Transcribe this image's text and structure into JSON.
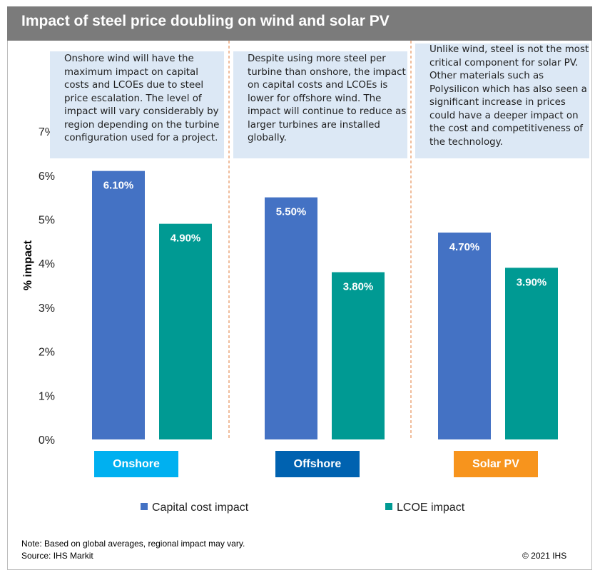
{
  "header": {
    "title": "Impact of steel price doubling on wind and solar PV"
  },
  "annotations": [
    "Onshore wind will have the maximum impact on capital costs and LCOEs due to steel price escalation. The level of impact will vary considerably by region depending on the turbine configuration used for a project.",
    "Despite using more steel per turbine than onshore, the impact on capital costs and LCOEs is lower for offshore wind. The impact will continue to reduce as larger turbines are installed globally.",
    "Unlike wind, steel is not the most critical component for solar PV. Other materials such as Polysilicon which has also seen a significant increase in prices could have a deeper impact on the cost and competitiveness of the technology."
  ],
  "footer": {
    "note": "Note: Based on global averages, regional impact may vary.",
    "source": "Source: IHS Markit",
    "copyright": "© 2021 IHS"
  },
  "colors": {
    "capital": "#4472c4",
    "lcoe": "#009a93",
    "onshore": "#00b0f0",
    "offshore": "#0062b0",
    "solar": "#f7941d",
    "divider": "#e07b39"
  },
  "chart_data": {
    "type": "bar",
    "title": "Impact of steel price doubling on wind and solar PV",
    "ylabel": "% impact",
    "ylim": [
      0,
      7
    ],
    "yticks": [
      "0%",
      "1%",
      "2%",
      "3%",
      "4%",
      "5%",
      "6%",
      "7%"
    ],
    "categories": [
      "Onshore",
      "Offshore",
      "Solar PV"
    ],
    "series": [
      {
        "name": "Capital cost impact",
        "values": [
          6.1,
          5.5,
          4.7
        ],
        "labels": [
          "6.10%",
          "5.50%",
          "4.70%"
        ]
      },
      {
        "name": "LCOE impact",
        "values": [
          4.9,
          3.8,
          3.9
        ],
        "labels": [
          "4.90%",
          "3.80%",
          "3.90%"
        ]
      }
    ],
    "grid": false,
    "legend": "bottom"
  }
}
